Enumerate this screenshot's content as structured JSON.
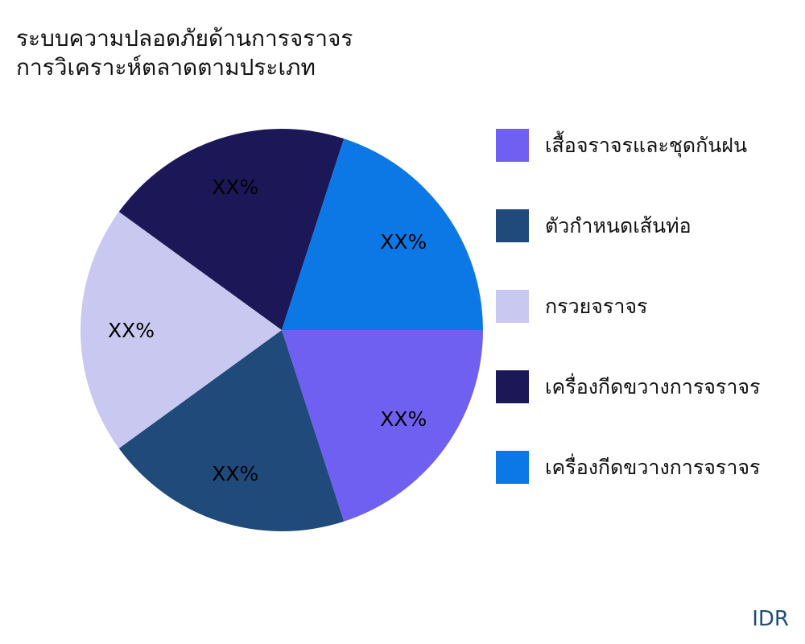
{
  "chart_data": {
    "type": "pie",
    "title": "ระบบความปลอดภัยด้านการจราจร",
    "subtitle": "การวิเคราะห์ตลาดตามประเภท",
    "slices": [
      {
        "label": "เสื้อจราจรและชุดกันฝน",
        "value": 20,
        "data_label": "XX%",
        "color": "#7060f2"
      },
      {
        "label": "ตัวกำหนดเส้นท่อ",
        "value": 20,
        "data_label": "XX%",
        "color": "#1f4a7a"
      },
      {
        "label": "กรวยจราจร",
        "value": 20,
        "data_label": "XX%",
        "color": "#c8c8f0"
      },
      {
        "label": "เครื่องกีดขวางการจราจร",
        "value": 20,
        "data_label": "XX%",
        "color": "#1c1857"
      },
      {
        "label": "เครื่องกีดขวางการจราจร",
        "value": 20,
        "data_label": "XX%",
        "color": "#0c78e6"
      }
    ],
    "start_angle": "east, clockwise",
    "legend_position": "right"
  },
  "source_label": "IDR"
}
